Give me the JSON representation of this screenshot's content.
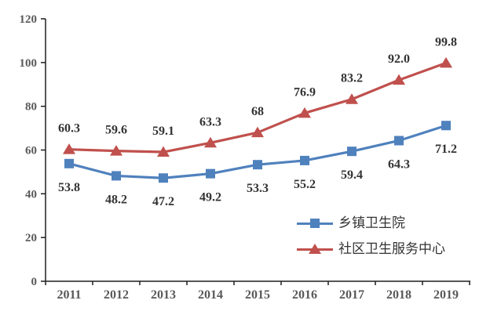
{
  "chart_data": {
    "type": "line",
    "title": "",
    "xlabel": "",
    "ylabel": "",
    "grid": false,
    "categories": [
      "2011",
      "2012",
      "2013",
      "2014",
      "2015",
      "2016",
      "2017",
      "2018",
      "2019"
    ],
    "series": [
      {
        "name": "乡镇卫生院",
        "color": "#4F81BD",
        "marker": "square",
        "values": [
          53.8,
          48.2,
          47.2,
          49.2,
          53.3,
          55.2,
          59.4,
          64.3,
          71.2
        ],
        "labels": [
          "53.8",
          "48.2",
          "47.2",
          "49.2",
          "53.3",
          "55.2",
          "59.4",
          "64.3",
          "71.2"
        ],
        "label_position": "below"
      },
      {
        "name": "社区卫生服务中心",
        "color": "#C0504D",
        "marker": "triangle",
        "values": [
          60.3,
          59.6,
          59.1,
          63.3,
          68,
          76.9,
          83.2,
          92.0,
          99.8
        ],
        "labels": [
          "60.3",
          "59.6",
          "59.1",
          "63.3",
          "68",
          "76.9",
          "83.2",
          "92.0",
          "99.8"
        ],
        "label_position": "above"
      }
    ],
    "y_axis": {
      "min": 0,
      "max": 120,
      "step": 20,
      "tick_labels": [
        "0",
        "20",
        "40",
        "60",
        "80",
        "100",
        "120"
      ]
    },
    "legend": {
      "position": "inside-bottom-right"
    }
  },
  "colors": {
    "series_blue": "#4F81BD",
    "series_red": "#C0504D",
    "axis_line": "#1f1f1f",
    "axis_text": "#595959",
    "data_label_text": "#333333",
    "background": "#ffffff"
  }
}
